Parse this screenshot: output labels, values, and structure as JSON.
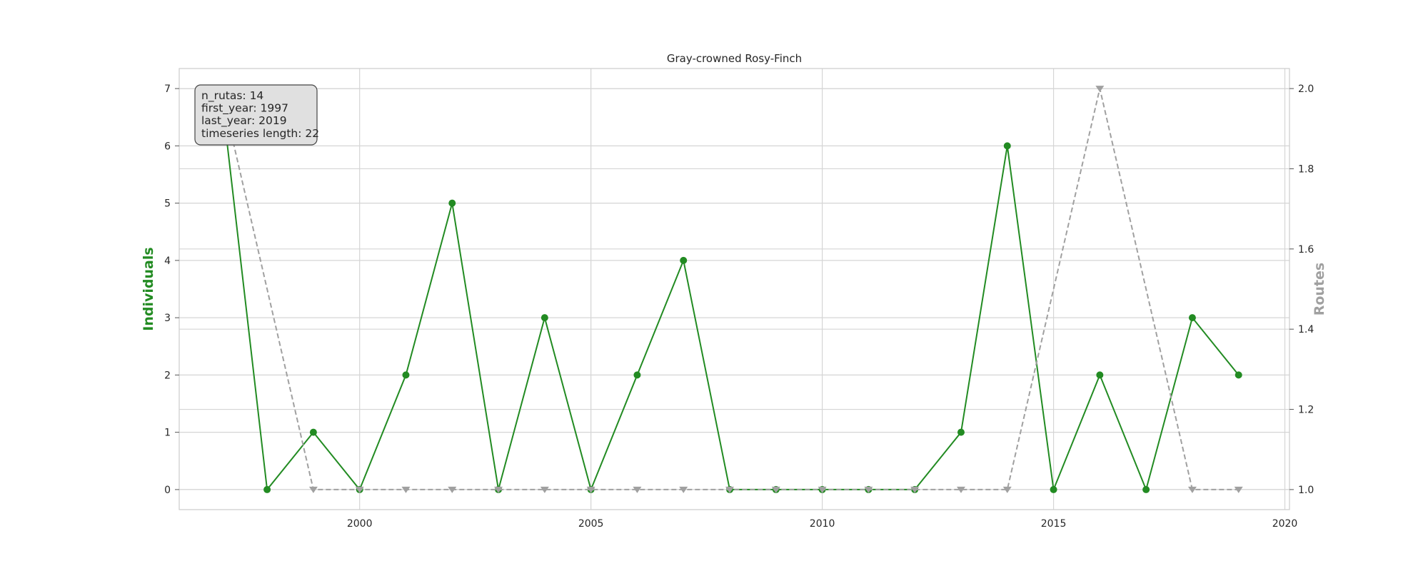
{
  "chart_data": {
    "type": "line",
    "title": "Gray-crowned Rosy-Finch",
    "xlabel": "",
    "xlim": [
      1996.1,
      2020.1
    ],
    "x_ticks": [
      2000,
      2005,
      2010,
      2015,
      2020
    ],
    "y_left": {
      "label": "Individuals",
      "color": "#228B22",
      "ylim": [
        -0.35,
        7.35
      ],
      "ticks": [
        0,
        1,
        2,
        3,
        4,
        5,
        6,
        7
      ]
    },
    "y_right": {
      "label": "Routes",
      "color": "#A0A0A0",
      "ylim": [
        0.95,
        2.05
      ],
      "ticks": [
        1.0,
        1.2,
        1.4,
        1.6,
        1.8,
        2.0
      ],
      "tick_labels": [
        "1.0",
        "1.2",
        "1.4",
        "1.6",
        "1.8",
        "2.0"
      ]
    },
    "grid": true,
    "series": [
      {
        "axis": "left",
        "color": "#228B22",
        "linestyle": "solid",
        "marker": "circle",
        "x": [
          1997,
          1998,
          1999,
          2000,
          2001,
          2002,
          2003,
          2004,
          2005,
          2006,
          2007,
          2008,
          2009,
          2010,
          2011,
          2012,
          2013,
          2014,
          2015,
          2016,
          2017,
          2018,
          2019
        ],
        "values": [
          7,
          0,
          1,
          0,
          2,
          5,
          0,
          3,
          0,
          2,
          4,
          0,
          0,
          0,
          0,
          0,
          1,
          6,
          0,
          2,
          0,
          3,
          2
        ]
      },
      {
        "axis": "right",
        "color": "#A0A0A0",
        "linestyle": "dashed",
        "marker": "triangle-down",
        "x": [
          1997,
          1999,
          2000,
          2001,
          2002,
          2003,
          2004,
          2005,
          2006,
          2007,
          2008,
          2009,
          2010,
          2011,
          2012,
          2013,
          2014,
          2016,
          2018,
          2019
        ],
        "values": [
          2,
          1,
          1,
          1,
          1,
          1,
          1,
          1,
          1,
          1,
          1,
          1,
          1,
          1,
          1,
          1,
          1,
          2,
          1,
          1
        ]
      }
    ],
    "info_box": {
      "lines": [
        "n_rutas: 14",
        "first_year: 1997",
        "last_year: 2019",
        "timeseries length: 22"
      ],
      "placement": "top-left"
    }
  }
}
